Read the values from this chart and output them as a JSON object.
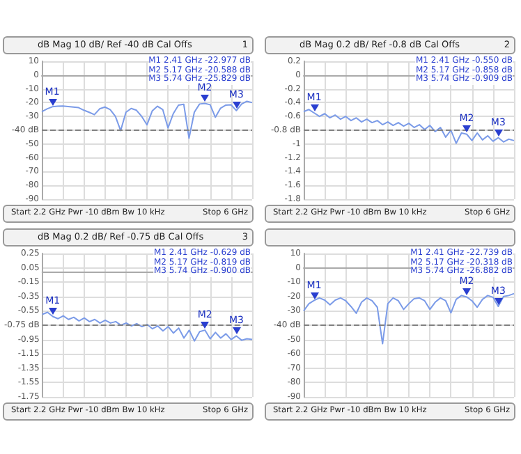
{
  "chart_data": [
    {
      "type": "line",
      "title": "dB Mag 10 dB/ Ref -40 dB Cal Offs",
      "categories": [
        null,
        null,
        null,
        null,
        null,
        null,
        null,
        null,
        null,
        null,
        null,
        null,
        null,
        null,
        null,
        null,
        null,
        null,
        null,
        null,
        null,
        null,
        null,
        null,
        null,
        null,
        null,
        null,
        null,
        null,
        null,
        null,
        null,
        null,
        null,
        null,
        null,
        null,
        null,
        null,
        null
      ],
      "ylim": [
        -90,
        10
      ],
      "yticks": [
        10,
        0,
        -10,
        -20,
        -30,
        {
          "value": -40,
          "label": "-40 dB"
        },
        -50,
        -60,
        -70,
        -80,
        -90
      ],
      "grid": true,
      "tick_labels": "y",
      "line_style": "solid",
      "series": [
        {
          "color": "#7b9be8",
          "values": [
            -26.5,
            -24.5,
            -23,
            -22.6,
            -22.5,
            -22.8,
            -23.2,
            -23.6,
            -25.5,
            -27,
            -28.7,
            -24.5,
            -23.2,
            -25,
            -30,
            -40.3,
            -27,
            -24.2,
            -25.5,
            -30,
            -36.1,
            -26,
            -22.6,
            -25,
            -38.4,
            -28,
            -21.8,
            -21.2,
            -45.8,
            -27,
            -21,
            -20.6,
            -21.5,
            -30.6,
            -24,
            -21.8,
            -21.6,
            -25.8,
            -21,
            -19,
            -20
          ]
        }
      ],
      "ref_lines": [
        {
          "axis": "y",
          "value": -40,
          "line_style": "dashed",
          "color": "#808080"
        }
      ],
      "annotations": [
        "1",
        "M1 2.41 GHz -22.977 dB",
        "M2 5.17 GHz -20.588 dB",
        "M3 5.74 GHz -25.829 dB",
        "Start 2.2 GHz Pwr -10 dBm Bw 10 kHz",
        "Stop 6 GHz",
        {
          "text": "M1",
          "y": -23
        },
        {
          "text": "M2",
          "y": -20.6
        },
        {
          "text": "M3",
          "y": -25.8
        }
      ]
    },
    {
      "type": "line",
      "title": "dB Mag 0.2 dB/ Ref -0.8 dB Cal Offs",
      "categories": [
        null,
        null,
        null,
        null,
        null,
        null,
        null,
        null,
        null,
        null,
        null,
        null,
        null,
        null,
        null,
        null,
        null,
        null,
        null,
        null,
        null,
        null,
        null,
        null,
        null,
        null,
        null,
        null,
        null,
        null,
        null,
        null,
        null,
        null,
        null,
        null,
        null,
        null,
        null,
        null,
        null
      ],
      "ylim": [
        -1.8,
        0.2
      ],
      "yticks": [
        0.2,
        0,
        -0.2,
        -0.4,
        -0.6,
        {
          "value": -0.8,
          "label": "-0.8 dB"
        },
        -1,
        -1.2,
        -1.4,
        -1.6,
        -1.8
      ],
      "grid": true,
      "tick_labels": "y",
      "line_style": "solid",
      "series": [
        {
          "color": "#7b9be8",
          "values": [
            -0.53,
            -0.5,
            -0.55,
            -0.6,
            -0.56,
            -0.62,
            -0.58,
            -0.64,
            -0.6,
            -0.66,
            -0.62,
            -0.68,
            -0.64,
            -0.69,
            -0.66,
            -0.72,
            -0.68,
            -0.73,
            -0.69,
            -0.74,
            -0.7,
            -0.76,
            -0.72,
            -0.79,
            -0.73,
            -0.82,
            -0.76,
            -0.9,
            -0.8,
            -0.99,
            -0.84,
            -0.858,
            -0.95,
            -0.84,
            -0.94,
            -0.88,
            -0.96,
            -0.909,
            -0.97,
            -0.93,
            -0.95
          ]
        }
      ],
      "ref_lines": [
        {
          "axis": "y",
          "value": -0.8,
          "line_style": "dashed",
          "color": "#808080"
        }
      ],
      "annotations": [
        "2",
        "M1 2.41 GHz -0.550 dB",
        "M2 5.17 GHz -0.858 dB",
        "M3 5.74 GHz -0.909 dB",
        "Start 2.2 GHz Pwr -10 dBm Bw 10 kHz",
        "Stop 6 GHz",
        {
          "text": "M1",
          "y": -0.55
        },
        {
          "text": "M2",
          "y": -0.858
        },
        {
          "text": "M3",
          "y": -0.909
        }
      ]
    },
    {
      "type": "line",
      "title": "dB Mag 0.2 dB/ Ref -0.75 dB Cal Offs",
      "categories": [
        null,
        null,
        null,
        null,
        null,
        null,
        null,
        null,
        null,
        null,
        null,
        null,
        null,
        null,
        null,
        null,
        null,
        null,
        null,
        null,
        null,
        null,
        null,
        null,
        null,
        null,
        null,
        null,
        null,
        null,
        null,
        null,
        null,
        null,
        null,
        null,
        null,
        null,
        null,
        null,
        null
      ],
      "ylim": [
        -1.75,
        0.25
      ],
      "yticks": [
        0.25,
        0.05,
        -0.15,
        -0.35,
        -0.55,
        {
          "value": -0.75,
          "label": "-0.75 dB"
        },
        -0.95,
        -1.15,
        -1.35,
        -1.55,
        -1.75
      ],
      "grid": true,
      "tick_labels": "y",
      "line_style": "solid",
      "series": [
        {
          "color": "#7b9be8",
          "values": [
            -0.6,
            -0.57,
            -0.629,
            -0.66,
            -0.62,
            -0.67,
            -0.64,
            -0.69,
            -0.65,
            -0.7,
            -0.67,
            -0.72,
            -0.68,
            -0.72,
            -0.7,
            -0.75,
            -0.72,
            -0.76,
            -0.73,
            -0.77,
            -0.74,
            -0.8,
            -0.76,
            -0.83,
            -0.77,
            -0.86,
            -0.79,
            -0.93,
            -0.82,
            -0.97,
            -0.84,
            -0.819,
            -0.94,
            -0.85,
            -0.93,
            -0.87,
            -0.95,
            -0.9,
            -0.96,
            -0.94,
            -0.95
          ]
        }
      ],
      "ref_lines": [
        {
          "axis": "y",
          "value": -0.75,
          "line_style": "dashed",
          "color": "#808080"
        }
      ],
      "annotations": [
        "3",
        "M1 2.41 GHz -0.629 dB",
        "M2 5.17 GHz -0.819 dB",
        "M3 5.74 GHz -0.900 dB",
        "Start 2.2 GHz Pwr -10 dBm Bw 10 kHz",
        "Stop 6 GHz",
        {
          "text": "M1",
          "y": -0.629
        },
        {
          "text": "M2",
          "y": -0.819
        },
        {
          "text": "M3",
          "y": -0.9
        }
      ]
    },
    {
      "type": "line",
      "categories": [
        null,
        null,
        null,
        null,
        null,
        null,
        null,
        null,
        null,
        null,
        null,
        null,
        null,
        null,
        null,
        null,
        null,
        null,
        null,
        null,
        null,
        null,
        null,
        null,
        null,
        null,
        null,
        null,
        null,
        null,
        null,
        null,
        null,
        null,
        null,
        null,
        null,
        null,
        null,
        null,
        null
      ],
      "ylim": [
        -90,
        10
      ],
      "yticks": [
        10,
        0,
        -10,
        -20,
        -30,
        {
          "value": -40,
          "label": "-40 dB"
        },
        -50,
        -60,
        -70,
        -80,
        -90
      ],
      "grid": true,
      "tick_labels": "y",
      "line_style": "solid",
      "series": [
        {
          "color": "#7b9be8",
          "values": [
            -30,
            -25,
            -22.7,
            -21,
            -22.5,
            -25.8,
            -22.5,
            -21,
            -23,
            -27,
            -31.7,
            -24,
            -21,
            -23,
            -27.5,
            -52.9,
            -25,
            -21,
            -23,
            -29,
            -25,
            -21.5,
            -21,
            -23,
            -29,
            -24,
            -21,
            -23,
            -31.4,
            -22,
            -19.3,
            -20.3,
            -23,
            -27.5,
            -22,
            -19.3,
            -20.5,
            -26.9,
            -20,
            -19.3,
            -18
          ]
        }
      ],
      "ref_lines": [
        {
          "axis": "y",
          "value": -40,
          "line_style": "dashed",
          "color": "#808080"
        }
      ],
      "annotations": [
        "M1 2.41 GHz -22.739 dB",
        "M2 5.17 GHz -20.318 dB",
        "M3 5.74 GHz -26.882 dB",
        "Start 2.2 GHz Pwr -10 dBm Bw 10 kHz",
        "Stop 6 GHz",
        {
          "text": "M1",
          "y": -22.7
        },
        {
          "text": "M2",
          "y": -20.3
        },
        {
          "text": "M3",
          "y": -26.9
        }
      ]
    }
  ]
}
